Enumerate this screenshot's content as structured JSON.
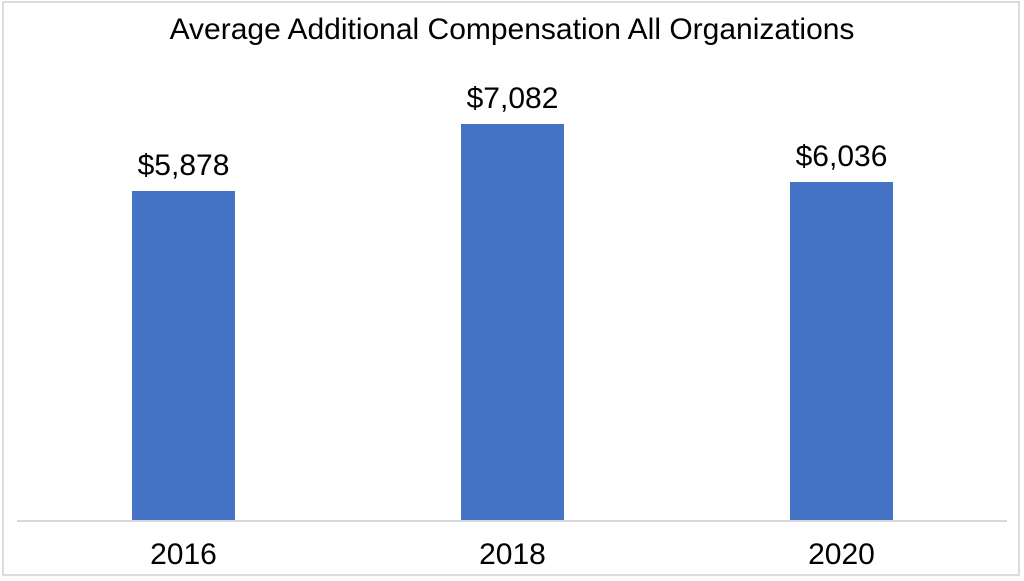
{
  "chart_data": {
    "type": "bar",
    "title": "Average Additional Compensation All Organizations",
    "categories": [
      "2016",
      "2018",
      "2020"
    ],
    "series": [
      {
        "name": "Average Additional Compensation",
        "values": [
          5878,
          7082,
          6036
        ],
        "labels": [
          "$5,878",
          "$7,082",
          "$6,036"
        ]
      }
    ],
    "xlabel": "",
    "ylabel": "",
    "ylim": [
      0,
      8000
    ],
    "grid": false,
    "legend": false,
    "data_labels": true,
    "bar_color": "#4472C4",
    "axis_line_color": "#D9D9D9",
    "border_color": "#DCDCDC",
    "background_color": "#FFFFFF",
    "text_color": "#000000"
  }
}
